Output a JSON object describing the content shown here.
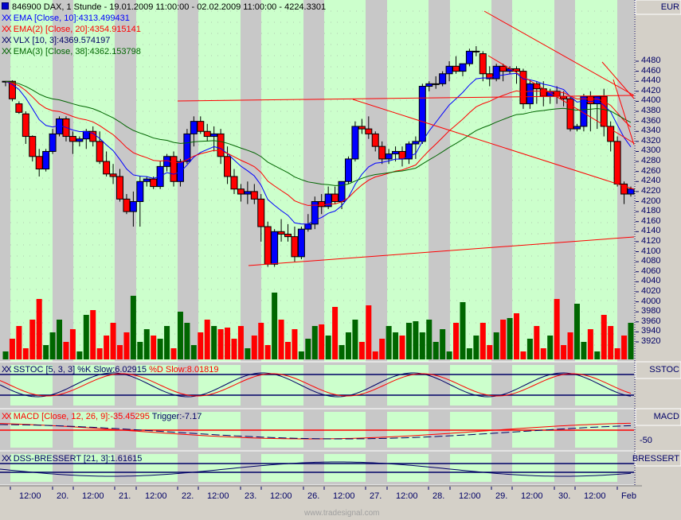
{
  "header": {
    "symbol_line": "846900  DAX, 1 Stunde - 19.01.2009 11:00:00 - 02.02.2009 11:00:00 - 4224.3301",
    "currency": "EUR"
  },
  "legends": {
    "ema10": "EMA [Close, 10]:4313.499431",
    "ema20": "EMA(2) [Close, 20]:4354.915141",
    "vlx": "VLX [10, 3]:4369.574197",
    "ema38": "EMA(3) [Close, 38]:4362.153798",
    "sstoc_k": "SSTOC [5, 3, 3] %K Slow:6.02915",
    "sstoc_d": "%D Slow:8.01819",
    "macd": "MACD [Close, 12, 26, 9]:-35.45295",
    "macd_trigger": "Trigger:-7.17",
    "dss": "DSS-BRESSERT [21, 3]:1.61615",
    "xx": "XX"
  },
  "panels": {
    "sstoc_title": "SSTOC",
    "macd_title": "MACD",
    "macd_tick": "-50",
    "dss_title": "BRESSERT"
  },
  "watermark": "www.tradesignal.com",
  "colors": {
    "bg_green": "#ccffcc",
    "bg_gray": "#c8c8c8",
    "up": "#0000ff",
    "down": "#ff0000",
    "vol_up": "#006600",
    "vol_down": "#ff0000",
    "axis_text": "#000066"
  },
  "chart_data": {
    "type": "candlestick",
    "title": "846900 DAX, 1 Stunde - 19.01.2009 11:00:00 - 02.02.2009 11:00:00 - 4224.3301",
    "x_ticks": [
      "12:00",
      "20.",
      "12:00",
      "21.",
      "12:00",
      "22.",
      "12:00",
      "23.",
      "12:00",
      "26.",
      "12:00",
      "27.",
      "12:00",
      "28.",
      "12:00",
      "29.",
      "12:00",
      "30.",
      "12:00",
      "Feb"
    ],
    "y_ticks": [
      4480,
      4460,
      4440,
      4420,
      4400,
      4380,
      4360,
      4340,
      4320,
      4300,
      4280,
      4260,
      4240,
      4220,
      4200,
      4180,
      4160,
      4140,
      4120,
      4100,
      4080,
      4060,
      4040,
      4020,
      4000,
      3980,
      3960,
      3940,
      3920
    ],
    "ylim": [
      3910,
      4500
    ],
    "currency": "EUR",
    "series_ohlc": [
      [
        4440,
        4440,
        4430,
        4440
      ],
      [
        4440,
        4442,
        4400,
        4405
      ],
      [
        4395,
        4400,
        4375,
        4378
      ],
      [
        4375,
        4380,
        4315,
        4330
      ],
      [
        4330,
        4332,
        4280,
        4290
      ],
      [
        4290,
        4305,
        4250,
        4265
      ],
      [
        4265,
        4305,
        4260,
        4300
      ],
      [
        4300,
        4345,
        4295,
        4335
      ],
      [
        4335,
        4370,
        4330,
        4365
      ],
      [
        4365,
        4370,
        4320,
        4330
      ],
      [
        4330,
        4340,
        4295,
        4320
      ],
      [
        4320,
        4330,
        4310,
        4325
      ],
      [
        4325,
        4345,
        4305,
        4340
      ],
      [
        4340,
        4350,
        4310,
        4320
      ],
      [
        4320,
        4340,
        4275,
        4280
      ],
      [
        4280,
        4300,
        4250,
        4255
      ],
      [
        4255,
        4275,
        4235,
        4250
      ],
      [
        4250,
        4265,
        4200,
        4205
      ],
      [
        4205,
        4215,
        4175,
        4180
      ],
      [
        4180,
        4220,
        4150,
        4200
      ],
      [
        4200,
        4250,
        4150,
        4240
      ],
      [
        4240,
        4250,
        4230,
        4245
      ],
      [
        4245,
        4250,
        4225,
        4230
      ],
      [
        4230,
        4280,
        4225,
        4270
      ],
      [
        4270,
        4295,
        4260,
        4290
      ],
      [
        4290,
        4300,
        4230,
        4240
      ],
      [
        4240,
        4285,
        4230,
        4280
      ],
      [
        4280,
        4345,
        4275,
        4335
      ],
      [
        4335,
        4370,
        4310,
        4360
      ],
      [
        4360,
        4370,
        4335,
        4340
      ],
      [
        4340,
        4355,
        4320,
        4330
      ],
      [
        4330,
        4350,
        4300,
        4335
      ],
      [
        4335,
        4345,
        4275,
        4290
      ],
      [
        4290,
        4310,
        4235,
        4250
      ],
      [
        4250,
        4265,
        4215,
        4225
      ],
      [
        4225,
        4235,
        4200,
        4215
      ],
      [
        4215,
        4240,
        4195,
        4220
      ],
      [
        4220,
        4235,
        4195,
        4205
      ],
      [
        4205,
        4215,
        4120,
        4150
      ],
      [
        4150,
        4160,
        4070,
        4075
      ],
      [
        4075,
        4145,
        4070,
        4140
      ],
      [
        4140,
        4165,
        4120,
        4135
      ],
      [
        4135,
        4155,
        4120,
        4130
      ],
      [
        4130,
        4150,
        4080,
        4090
      ],
      [
        4090,
        4150,
        4085,
        4145
      ],
      [
        4145,
        4175,
        4140,
        4155
      ],
      [
        4155,
        4210,
        4145,
        4200
      ],
      [
        4200,
        4215,
        4175,
        4190
      ],
      [
        4190,
        4230,
        4185,
        4215
      ],
      [
        4215,
        4230,
        4195,
        4200
      ],
      [
        4200,
        4235,
        4185,
        4240
      ],
      [
        4240,
        4290,
        4235,
        4285
      ],
      [
        4285,
        4360,
        4280,
        4350
      ],
      [
        4350,
        4365,
        4335,
        4345
      ],
      [
        4345,
        4370,
        4325,
        4335
      ],
      [
        4335,
        4340,
        4300,
        4310
      ],
      [
        4310,
        4320,
        4275,
        4285
      ],
      [
        4285,
        4305,
        4275,
        4295
      ],
      [
        4295,
        4310,
        4280,
        4300
      ],
      [
        4300,
        4310,
        4270,
        4285
      ],
      [
        4285,
        4320,
        4275,
        4315
      ],
      [
        4315,
        4330,
        4285,
        4320
      ],
      [
        4320,
        4435,
        4315,
        4430
      ],
      [
        4430,
        4440,
        4420,
        4435
      ],
      [
        4435,
        4450,
        4425,
        4435
      ],
      [
        4435,
        4460,
        4430,
        4455
      ],
      [
        4455,
        4480,
        4440,
        4470
      ],
      [
        4470,
        4490,
        4455,
        4460
      ],
      [
        4460,
        4475,
        4450,
        4475
      ],
      [
        4475,
        4505,
        4470,
        4500
      ],
      [
        4500,
        4510,
        4490,
        4500
      ],
      [
        4495,
        4500,
        4440,
        4455
      ],
      [
        4455,
        4470,
        4430,
        4445
      ],
      [
        4445,
        4475,
        4440,
        4470
      ],
      [
        4470,
        4475,
        4440,
        4460
      ],
      [
        4460,
        4470,
        4455,
        4465
      ],
      [
        4465,
        4470,
        4435,
        4460
      ],
      [
        4460,
        4465,
        4385,
        4395
      ],
      [
        4395,
        4440,
        4385,
        4435
      ],
      [
        4435,
        4440,
        4395,
        4425
      ],
      [
        4425,
        4440,
        4390,
        4410
      ],
      [
        4410,
        4425,
        4395,
        4420
      ],
      [
        4420,
        4430,
        4395,
        4410
      ],
      [
        4410,
        4420,
        4390,
        4405
      ],
      [
        4405,
        4410,
        4340,
        4345
      ],
      [
        4345,
        4355,
        4340,
        4350
      ],
      [
        4350,
        4415,
        4340,
        4410
      ],
      [
        4410,
        4420,
        4340,
        4395
      ],
      [
        4395,
        4400,
        4345,
        4410
      ],
      [
        4410,
        4425,
        4330,
        4350
      ],
      [
        4350,
        4360,
        4300,
        4320
      ],
      [
        4320,
        4330,
        4230,
        4235
      ],
      [
        4235,
        4240,
        4195,
        4215
      ],
      [
        4215,
        4230,
        4210,
        4225
      ]
    ],
    "series": [
      {
        "name": "EMA [Close, 10]",
        "last": 4313.499431,
        "color": "#0000ff"
      },
      {
        "name": "EMA(2) [Close, 20]",
        "last": 4354.915141,
        "color": "#ff0000"
      },
      {
        "name": "VLX [10, 3]",
        "last": 4369.574197,
        "color": "#000066"
      },
      {
        "name": "EMA(3) [Close, 38]",
        "last": 4362.153798,
        "color": "#006600"
      },
      {
        "name": "SSTOC %K Slow",
        "last": 6.02915
      },
      {
        "name": "SSTOC %D Slow",
        "last": 8.01819
      },
      {
        "name": "MACD [Close, 12, 26, 9]",
        "last": -35.45295
      },
      {
        "name": "MACD Trigger",
        "last": -7.17
      },
      {
        "name": "DSS-BRESSERT [21, 3]",
        "last": 1.61615
      }
    ],
    "volume_note": "Volume histogram in lower main pane, green = up bar, red = down bar",
    "grid": true
  }
}
